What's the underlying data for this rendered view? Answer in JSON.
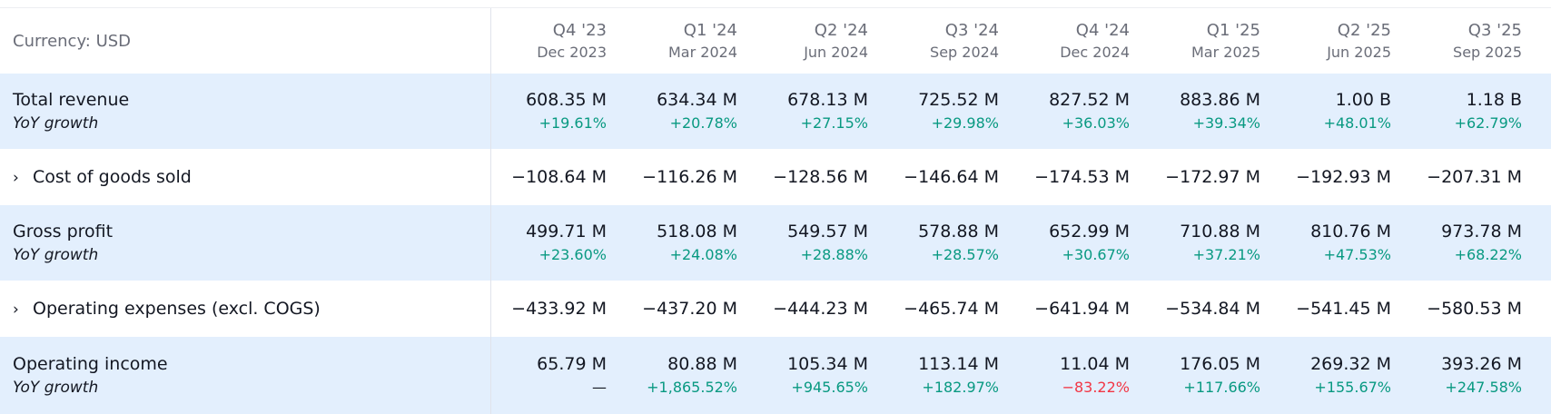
{
  "header": {
    "currency_label": "Currency: USD",
    "periods": [
      {
        "quarter": "Q4 '23",
        "date": "Dec 2023"
      },
      {
        "quarter": "Q1 '24",
        "date": "Mar 2024"
      },
      {
        "quarter": "Q2 '24",
        "date": "Jun 2024"
      },
      {
        "quarter": "Q3 '24",
        "date": "Sep 2024"
      },
      {
        "quarter": "Q4 '24",
        "date": "Dec 2024"
      },
      {
        "quarter": "Q1 '25",
        "date": "Mar 2025"
      },
      {
        "quarter": "Q2 '25",
        "date": "Jun 2025"
      },
      {
        "quarter": "Q3 '25",
        "date": "Sep 2025"
      }
    ]
  },
  "rows": {
    "total_revenue": {
      "label": "Total revenue",
      "sub_label": "YoY growth",
      "values": [
        "608.35 M",
        "634.34 M",
        "678.13 M",
        "725.52 M",
        "827.52 M",
        "883.86 M",
        "1.00 B",
        "1.18 B"
      ],
      "growth": [
        "+19.61%",
        "+20.78%",
        "+27.15%",
        "+29.98%",
        "+36.03%",
        "+39.34%",
        "+48.01%",
        "+62.79%"
      ]
    },
    "cogs": {
      "label": "Cost of goods sold",
      "chevron": "›",
      "values": [
        "−108.64 M",
        "−116.26 M",
        "−128.56 M",
        "−146.64 M",
        "−174.53 M",
        "−172.97 M",
        "−192.93 M",
        "−207.31 M"
      ]
    },
    "gross_profit": {
      "label": "Gross profit",
      "sub_label": "YoY growth",
      "values": [
        "499.71 M",
        "518.08 M",
        "549.57 M",
        "578.88 M",
        "652.99 M",
        "710.88 M",
        "810.76 M",
        "973.78 M"
      ],
      "growth": [
        "+23.60%",
        "+24.08%",
        "+28.88%",
        "+28.57%",
        "+30.67%",
        "+37.21%",
        "+47.53%",
        "+68.22%"
      ]
    },
    "opex": {
      "label": "Operating expenses (excl. COGS)",
      "chevron": "›",
      "values": [
        "−433.92 M",
        "−437.20 M",
        "−444.23 M",
        "−465.74 M",
        "−641.94 M",
        "−534.84 M",
        "−541.45 M",
        "−580.53 M"
      ]
    },
    "operating_income": {
      "label": "Operating income",
      "sub_label": "YoY growth",
      "values": [
        "65.79 M",
        "80.88 M",
        "105.34 M",
        "113.14 M",
        "11.04 M",
        "176.05 M",
        "269.32 M",
        "393.26 M"
      ],
      "growth": [
        "—",
        "+1,865.52%",
        "+945.65%",
        "+182.97%",
        "−83.22%",
        "+117.66%",
        "+155.67%",
        "+247.58%"
      ]
    }
  },
  "colors": {
    "shaded_row": "#e3effd",
    "positive": "#089981",
    "negative": "#f23645",
    "muted_text": "#6a6d78"
  }
}
